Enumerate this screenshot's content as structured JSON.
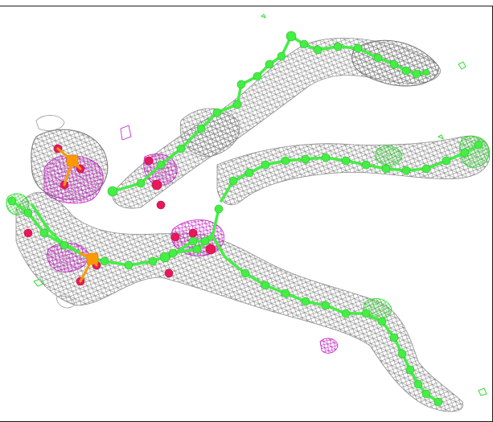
{
  "figure": {
    "kind": "electron-density-map-render",
    "colors": {
      "mesh": "#8c8c8c",
      "mesh_dark": "#6f6f6f",
      "ligand_density": "#c020c0",
      "difference_positive": "#33dd33",
      "carbon": "#44ee44",
      "oxygen": "#e8185a",
      "phosphorus": "#ff9900",
      "background": "#ffffff"
    }
  }
}
